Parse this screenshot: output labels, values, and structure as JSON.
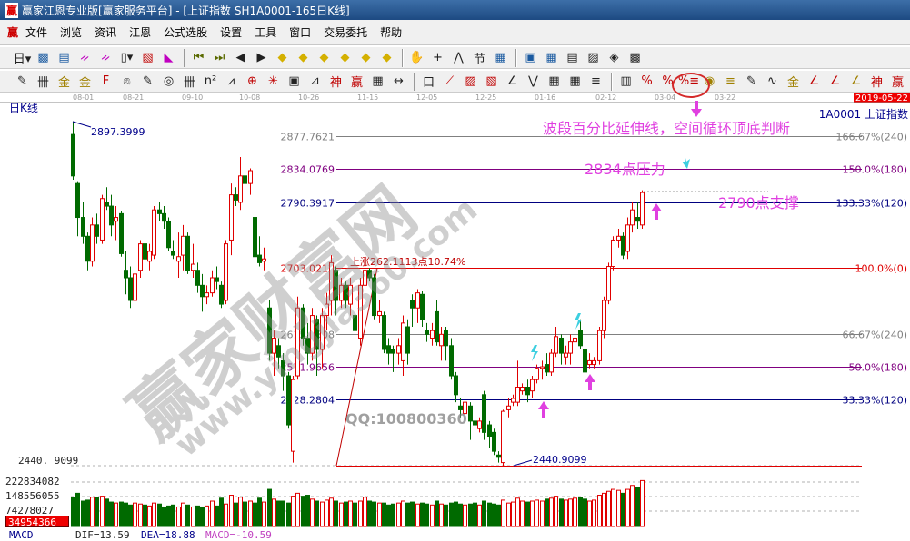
{
  "window": {
    "title": "赢家江恩专业版[赢家服务平台] - [上证指数  SH1A0001-165日K线]",
    "logo": "赢"
  },
  "menu": {
    "logo": "赢",
    "items": [
      "文件",
      "浏览",
      "资讯",
      "江恩",
      "公式选股",
      "设置",
      "工具",
      "窗口",
      "交易委托",
      "帮助"
    ]
  },
  "toolbar1": [
    [
      "period-select-icon",
      "日▾"
    ],
    [
      "chart-icon",
      "▩"
    ],
    [
      "doc-icon",
      "▤"
    ],
    [
      "wave3-icon",
      "ᨀ"
    ],
    [
      "wave9-icon",
      "ᨀ"
    ],
    [
      "candle-select-icon",
      "▯▾"
    ],
    [
      "reverse-icon",
      "▧"
    ],
    [
      "flag-icon",
      "◣"
    ],
    "|",
    [
      "first-icon",
      "⏮"
    ],
    [
      "last-icon",
      "⏭"
    ],
    [
      "left-icon",
      "◀"
    ],
    [
      "right-icon",
      "▶"
    ],
    [
      "move-left-icon",
      "◆"
    ],
    [
      "move-right-icon",
      "◆"
    ],
    [
      "expand-icon",
      "◆"
    ],
    [
      "shrink-icon",
      "◆"
    ],
    [
      "zoom-in-icon",
      "◆"
    ],
    [
      "zoom-out-icon",
      "◆"
    ],
    "|",
    [
      "hand-icon",
      "✋"
    ],
    [
      "crosshair-icon",
      "+"
    ],
    [
      "line-icon",
      "⋀"
    ],
    [
      "section-icon",
      "节"
    ],
    [
      "map-icon",
      "▦"
    ],
    "|",
    [
      "calendar-icon",
      "▣"
    ],
    [
      "calculator-icon",
      "▦"
    ],
    [
      "notes-icon",
      "▤"
    ],
    [
      "save-icon",
      "▨"
    ],
    [
      "network-icon",
      "◈"
    ],
    [
      "print-icon",
      "▩"
    ]
  ],
  "toolbar2": [
    [
      "pen-icon",
      "✎"
    ],
    [
      "grid-lines-icon",
      "卌"
    ],
    [
      "gold-line-icon",
      "金"
    ],
    [
      "gold-line2-icon",
      "金"
    ],
    [
      "f-line-icon",
      "F"
    ],
    [
      "spiral-icon",
      "෧"
    ],
    [
      "pen2-icon",
      "✎"
    ],
    [
      "circle-ruler-icon",
      "◎"
    ],
    [
      "parallel-icon",
      "卌"
    ],
    [
      "n2-icon",
      "n²"
    ],
    [
      "fan-icon",
      "⩘"
    ],
    [
      "target-icon",
      "⊕"
    ],
    [
      "star-icon",
      "✳"
    ],
    [
      "square-icon",
      "▣"
    ],
    [
      "angle-icon",
      "⊿"
    ],
    [
      "shen-icon",
      "神"
    ],
    [
      "ying-icon",
      "赢"
    ],
    [
      "ruler-icon",
      "▦"
    ],
    [
      "width-icon",
      "↔"
    ],
    "|",
    [
      "box-icon",
      "口"
    ],
    [
      "fan2-icon",
      "⟋"
    ],
    [
      "grid-box-icon",
      "▨"
    ],
    [
      "grid-box2-icon",
      "▧"
    ],
    [
      "angle2-icon",
      "∠"
    ],
    [
      "zigzag-icon",
      "⋁"
    ],
    [
      "grid3-icon",
      "▦"
    ],
    [
      "grid4-icon",
      "▦"
    ],
    [
      "lines-icon",
      "≡"
    ],
    "|",
    [
      "bars-icon",
      "▥"
    ],
    [
      "percent-line-icon",
      "%"
    ],
    [
      "percent-icon",
      "%"
    ],
    [
      "percent-extension-icon",
      "%≡"
    ],
    [
      "gold-circle-icon",
      "◉"
    ],
    [
      "gold-lines-icon",
      "≡"
    ],
    [
      "pen3-icon",
      "✎"
    ],
    [
      "wave-icon",
      "∿"
    ],
    [
      "gold2-icon",
      "金"
    ],
    [
      "j-angle-icon",
      "∠"
    ],
    [
      "f-angle-icon",
      "∠"
    ],
    [
      "gold-angle-icon",
      "∠"
    ],
    [
      "shen-angle-icon",
      "神"
    ],
    [
      "ying-angle-icon",
      "赢"
    ]
  ],
  "date_axis": [
    "08-01",
    "08-21",
    "09-10",
    "10-08",
    "10-26",
    "11-15",
    "12-05",
    "12-25",
    "01-16",
    "02-12",
    "03-04",
    "03-22"
  ],
  "current_date": "2019-05-22",
  "chart_label": "日K线",
  "symbol": "1A0001  上证指数",
  "colors": {
    "up": "#e00000",
    "down": "#006a00",
    "annotation": "#e040e0",
    "cyan_arrow": "#3ccfe0"
  },
  "chart_data": {
    "type": "candlestick",
    "title": "上证指数 SH1A0001-165日K线",
    "candles_ohlc_note": "[open, close, high, low]",
    "candles": [
      [
        2880,
        2825,
        2897.4,
        2820
      ],
      [
        2815,
        2770,
        2818,
        2745
      ],
      [
        2770,
        2745,
        2790,
        2735
      ],
      [
        2745,
        2712,
        2750,
        2700
      ],
      [
        2712,
        2760,
        2770,
        2705
      ],
      [
        2760,
        2745,
        2775,
        2735
      ],
      [
        2740,
        2795,
        2800,
        2735
      ],
      [
        2790,
        2785,
        2810,
        2780
      ],
      [
        2785,
        2760,
        2800,
        2745
      ],
      [
        2765,
        2770,
        2785,
        2740
      ],
      [
        2775,
        2722,
        2778,
        2718
      ],
      [
        2700,
        2690,
        2725,
        2668
      ],
      [
        2690,
        2660,
        2705,
        2650
      ],
      [
        2660,
        2695,
        2700,
        2645
      ],
      [
        2700,
        2735,
        2740,
        2690
      ],
      [
        2735,
        2715,
        2740,
        2705
      ],
      [
        2712,
        2725,
        2735,
        2700
      ],
      [
        2720,
        2780,
        2785,
        2715
      ],
      [
        2780,
        2775,
        2790,
        2765
      ],
      [
        2775,
        2765,
        2785,
        2755
      ],
      [
        2765,
        2730,
        2770,
        2725
      ],
      [
        2725,
        2720,
        2740,
        2715
      ],
      [
        2712,
        2718,
        2750,
        2690
      ],
      [
        2720,
        2745,
        2760,
        2700
      ],
      [
        2745,
        2700,
        2750,
        2695
      ],
      [
        2700,
        2708,
        2735,
        2690
      ],
      [
        2700,
        2680,
        2710,
        2670
      ],
      [
        2680,
        2665,
        2695,
        2645
      ],
      [
        2665,
        2670,
        2680,
        2655
      ],
      [
        2670,
        2690,
        2700,
        2665
      ],
      [
        2690,
        2685,
        2705,
        2675
      ],
      [
        2680,
        2655,
        2685,
        2650
      ],
      [
        2660,
        2735,
        2740,
        2655
      ],
      [
        2740,
        2800,
        2815,
        2720
      ],
      [
        2800,
        2793,
        2810,
        2785
      ],
      [
        2790,
        2825,
        2850,
        2780
      ],
      [
        2825,
        2815,
        2830,
        2790
      ],
      [
        2815,
        2832,
        2835,
        2800
      ],
      [
        2770,
        2718,
        2775,
        2715
      ],
      [
        2720,
        2710,
        2745,
        2705
      ],
      [
        2712,
        2715,
        2730,
        2700
      ],
      [
        2650,
        2590,
        2660,
        2580
      ],
      [
        2590,
        2610,
        2620,
        2560
      ],
      [
        2600,
        2585,
        2610,
        2570
      ],
      [
        2580,
        2560,
        2590,
        2540
      ],
      [
        2560,
        2495,
        2565,
        2490
      ],
      [
        2460,
        2555,
        2560,
        2445
      ],
      [
        2560,
        2650,
        2665,
        2555
      ],
      [
        2650,
        2610,
        2655,
        2600
      ],
      [
        2610,
        2590,
        2630,
        2575
      ],
      [
        2590,
        2640,
        2650,
        2580
      ],
      [
        2635,
        2595,
        2640,
        2560
      ],
      [
        2595,
        2640,
        2650,
        2570
      ],
      [
        2640,
        2655,
        2670,
        2620
      ],
      [
        2660,
        2710,
        2720,
        2640
      ],
      [
        2700,
        2660,
        2705,
        2640
      ],
      [
        2660,
        2680,
        2690,
        2650
      ],
      [
        2680,
        2660,
        2685,
        2650
      ],
      [
        2655,
        2680,
        2690,
        2640
      ],
      [
        2640,
        2620,
        2650,
        2610
      ],
      [
        2610,
        2680,
        2690,
        2600
      ],
      [
        2680,
        2700,
        2703,
        2670
      ],
      [
        2700,
        2690,
        2703,
        2685
      ],
      [
        2690,
        2640,
        2695,
        2635
      ],
      [
        2640,
        2645,
        2660,
        2630
      ],
      [
        2640,
        2595,
        2645,
        2590
      ],
      [
        2600,
        2590,
        2610,
        2575
      ],
      [
        2595,
        2590,
        2600,
        2565
      ],
      [
        2590,
        2600,
        2610,
        2575
      ],
      [
        2580,
        2630,
        2640,
        2560
      ],
      [
        2625,
        2590,
        2635,
        2575
      ],
      [
        2660,
        2650,
        2668,
        2625
      ],
      [
        2650,
        2670,
        2675,
        2630
      ],
      [
        2668,
        2635,
        2672,
        2625
      ],
      [
        2620,
        2615,
        2630,
        2605
      ],
      [
        2610,
        2620,
        2630,
        2600
      ],
      [
        2645,
        2605,
        2660,
        2600
      ],
      [
        2600,
        2615,
        2625,
        2580
      ],
      [
        2620,
        2600,
        2625,
        2580
      ],
      [
        2600,
        2560,
        2610,
        2555
      ],
      [
        2560,
        2535,
        2565,
        2525
      ],
      [
        2520,
        2515,
        2530,
        2505
      ],
      [
        2510,
        2525,
        2530,
        2490
      ],
      [
        2520,
        2500,
        2525,
        2475
      ],
      [
        2500,
        2495,
        2510,
        2450
      ],
      [
        2490,
        2500,
        2505,
        2485
      ],
      [
        2535,
        2485,
        2540,
        2475
      ],
      [
        2495,
        2480,
        2500,
        2465
      ],
      [
        2485,
        2460,
        2490,
        2455
      ],
      [
        2455,
        2452,
        2460,
        2445
      ],
      [
        2445,
        2513,
        2515,
        2440.91
      ],
      [
        2515,
        2520,
        2530,
        2505
      ],
      [
        2525,
        2530,
        2535,
        2520
      ],
      [
        2525,
        2545,
        2580,
        2520
      ],
      [
        2540,
        2545,
        2550,
        2535
      ],
      [
        2545,
        2535,
        2555,
        2525
      ],
      [
        2540,
        2555,
        2560,
        2530
      ],
      [
        2555,
        2570,
        2575,
        2550
      ],
      [
        2570,
        2572,
        2580,
        2555
      ],
      [
        2575,
        2565,
        2590,
        2560
      ],
      [
        2565,
        2590,
        2595,
        2560
      ],
      [
        2590,
        2612,
        2625,
        2585
      ],
      [
        2610,
        2590,
        2615,
        2575
      ],
      [
        2585,
        2590,
        2600,
        2575
      ],
      [
        2590,
        2605,
        2615,
        2575
      ],
      [
        2605,
        2610,
        2620,
        2590
      ],
      [
        2620,
        2600,
        2635,
        2595
      ],
      [
        2595,
        2565,
        2600,
        2555
      ],
      [
        2575,
        2580,
        2590,
        2570
      ],
      [
        2575,
        2580,
        2585,
        2570
      ],
      [
        2580,
        2620,
        2625,
        2575
      ],
      [
        2620,
        2660,
        2665,
        2610
      ],
      [
        2660,
        2705,
        2710,
        2655
      ],
      [
        2705,
        2740,
        2745,
        2700
      ],
      [
        2740,
        2745,
        2755,
        2730
      ],
      [
        2745,
        2720,
        2750,
        2715
      ],
      [
        2725,
        2760,
        2770,
        2715
      ],
      [
        2760,
        2780,
        2790,
        2750
      ],
      [
        2770,
        2765,
        2790,
        2755
      ],
      [
        2760,
        2803,
        2806,
        2755
      ]
    ],
    "volume": [
      150000000.0,
      170000000.0,
      130000000.0,
      135000000.0,
      150000000.0,
      150000000.0,
      155000000.0,
      140000000.0,
      125000000.0,
      120000000.0,
      125000000.0,
      120000000.0,
      110000000.0,
      120000000.0,
      115000000.0,
      110000000.0,
      105000000.0,
      120000000.0,
      115000000.0,
      100000000.0,
      105000000.0,
      110000000.0,
      100000000.0,
      120000000.0,
      110000000.0,
      100000000.0,
      105000000.0,
      100000000.0,
      105000000.0,
      130000000.0,
      105000000.0,
      145000000.0,
      115000000.0,
      160000000.0,
      120000000.0,
      150000000.0,
      125000000.0,
      130000000.0,
      120000000.0,
      145000000.0,
      125000000.0,
      190000000.0,
      140000000.0,
      130000000.0,
      130000000.0,
      120000000.0,
      155000000.0,
      170000000.0,
      155000000.0,
      160000000.0,
      140000000.0,
      130000000.0,
      125000000.0,
      135000000.0,
      145000000.0,
      130000000.0,
      120000000.0,
      125000000.0,
      130000000.0,
      120000000.0,
      130000000.0,
      150000000.0,
      130000000.0,
      125000000.0,
      120000000.0,
      120000000.0,
      110000000.0,
      115000000.0,
      120000000.0,
      130000000.0,
      120000000.0,
      125000000.0,
      115000000.0,
      120000000.0,
      115000000.0,
      110000000.0,
      130000000.0,
      115000000.0,
      110000000.0,
      120000000.0,
      125000000.0,
      115000000.0,
      110000000.0,
      115000000.0,
      120000000.0,
      110000000.0,
      130000000.0,
      120000000.0,
      115000000.0,
      110000000.0,
      135000000.0,
      120000000.0,
      125000000.0,
      145000000.0,
      130000000.0,
      125000000.0,
      130000000.0,
      135000000.0,
      130000000.0,
      140000000.0,
      145000000.0,
      155000000.0,
      140000000.0,
      135000000.0,
      140000000.0,
      145000000.0,
      150000000.0,
      140000000.0,
      130000000.0,
      135000000.0,
      160000000.0,
      170000000.0,
      180000000.0,
      190000000.0,
      185000000.0,
      170000000.0,
      190000000.0,
      210000000.0,
      200000000.0,
      235000000.0
    ],
    "price_levels": [
      {
        "price": "2877.7621",
        "label": "166.67%(240)",
        "color": "#808080"
      },
      {
        "price": "2834.0769",
        "label": "150.0%(180)",
        "color": "#800080"
      },
      {
        "price": "2790.3917",
        "label": "133.33%(120)",
        "color": "#000080"
      },
      {
        "price": "2703.0212",
        "label": "100.0%(0)",
        "color": "#e00000"
      },
      {
        "price": "2615.6508",
        "label": "66.67%(240)",
        "color": "#808080"
      },
      {
        "price": "2571.9656",
        "label": "50.0%(180)",
        "color": "#800080"
      },
      {
        "price": "2528.2804",
        "label": "33.33%(120)",
        "color": "#000080"
      }
    ],
    "high_label": "2897.3999",
    "low_label": "2440.9099",
    "low_axis_label": "2440. 9099",
    "rise_label": "上涨262.1113点10.74%",
    "volume_ticks": [
      "222834082",
      "148556055",
      "74278027"
    ],
    "current_volume": "34954366"
  },
  "annotations": {
    "title": "波段百分比延伸线，空间循环顶底判断",
    "pressure": "2834点压力",
    "support": "2790点支撑"
  },
  "watermark": {
    "site_cn": "赢家财富网",
    "site_url": "www.yingjia360.com",
    "qq": "QQ:100800360"
  },
  "macd": {
    "name": "MACD",
    "dif": "DIF=13.59",
    "dea": "DEA=18.88",
    "macd": "MACD=-10.59"
  }
}
